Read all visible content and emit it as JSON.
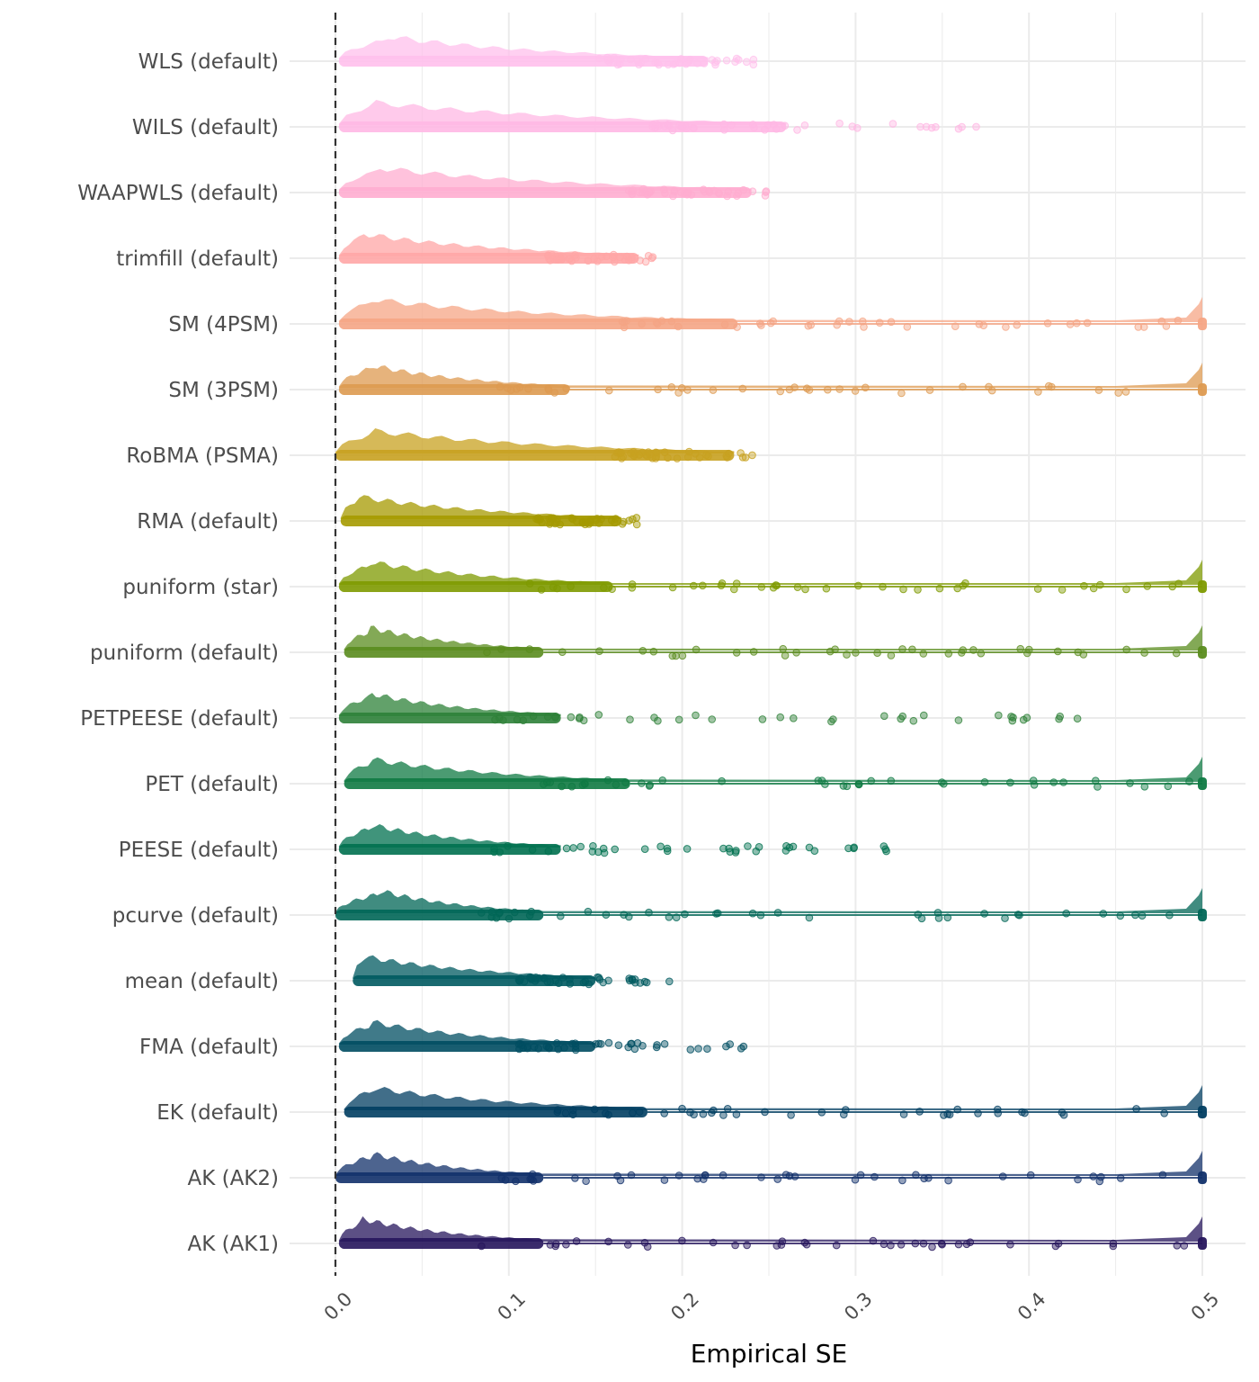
{
  "chart_data": {
    "type": "scatter",
    "subtype": "raincloud",
    "title": "",
    "xlabel": "Empirical SE",
    "ylabel": "",
    "xlim": [
      0.0,
      0.5
    ],
    "x_ticks": [
      "0.0",
      "0.1",
      "0.2",
      "0.3",
      "0.4",
      "0.5"
    ],
    "reference_line": {
      "x": 0.0,
      "style": "dashed"
    },
    "grid": true,
    "legend": "none",
    "categories": [
      "WLS (default)",
      "WILS (default)",
      "WAAPWLS (default)",
      "trimfill (default)",
      "SM (4PSM)",
      "SM (3PSM)",
      "RoBMA (PSMA)",
      "RMA (default)",
      "puniform (star)",
      "puniform (default)",
      "PETPEESE (default)",
      "PET (default)",
      "PEESE (default)",
      "pcurve (default)",
      "mean (default)",
      "FMA (default)",
      "EK (default)",
      "AK (AK2)",
      "AK (AK1)"
    ],
    "series": [
      {
        "category": "WLS (default)",
        "color": "#ffc0ec",
        "min": 0.002,
        "max": 0.242,
        "dense_max": 0.215,
        "peak": 0.03,
        "spike_at_max": 0
      },
      {
        "category": "WILS (default)",
        "color": "#ffb8e4",
        "min": 0.002,
        "max": 0.37,
        "dense_max": 0.26,
        "peak": 0.02,
        "spike_at_max": 0
      },
      {
        "category": "WAAPWLS (default)",
        "color": "#ffadd0",
        "min": 0.002,
        "max": 0.252,
        "dense_max": 0.24,
        "peak": 0.025,
        "spike_at_max": 0
      },
      {
        "category": "trimfill (default)",
        "color": "#ffa6a6",
        "min": 0.002,
        "max": 0.185,
        "dense_max": 0.175,
        "peak": 0.015,
        "spike_at_max": 0
      },
      {
        "category": "SM (4PSM)",
        "color": "#f5a585",
        "min": 0.002,
        "max": 0.5,
        "dense_max": 0.232,
        "peak": 0.02,
        "spike_at_max": 1
      },
      {
        "category": "SM (3PSM)",
        "color": "#dd9a50",
        "min": 0.002,
        "max": 0.5,
        "dense_max": 0.135,
        "peak": 0.02,
        "spike_at_max": 1
      },
      {
        "category": "RoBMA (PSMA)",
        "color": "#c8a120",
        "min": 0.0,
        "max": 0.242,
        "dense_max": 0.23,
        "peak": 0.02,
        "spike_at_max": 0
      },
      {
        "category": "RMA (default)",
        "color": "#a59a00",
        "min": 0.003,
        "max": 0.175,
        "dense_max": 0.165,
        "peak": 0.012,
        "spike_at_max": 0
      },
      {
        "category": "puniform (star)",
        "color": "#7e9a00",
        "min": 0.002,
        "max": 0.5,
        "dense_max": 0.16,
        "peak": 0.02,
        "spike_at_max": 1
      },
      {
        "category": "puniform (default)",
        "color": "#5a8c1e",
        "min": 0.005,
        "max": 0.5,
        "dense_max": 0.12,
        "peak": 0.02,
        "spike_at_max": 1
      },
      {
        "category": "PETPEESE (default)",
        "color": "#2e8138",
        "min": 0.002,
        "max": 0.438,
        "dense_max": 0.13,
        "peak": 0.02,
        "spike_at_max": 0
      },
      {
        "category": "PET (default)",
        "color": "#0f7a43",
        "min": 0.005,
        "max": 0.5,
        "dense_max": 0.17,
        "peak": 0.02,
        "spike_at_max": 1
      },
      {
        "category": "PEESE (default)",
        "color": "#00704f",
        "min": 0.002,
        "max": 0.32,
        "dense_max": 0.13,
        "peak": 0.02,
        "spike_at_max": 0
      },
      {
        "category": "pcurve (default)",
        "color": "#006656",
        "min": 0.0,
        "max": 0.5,
        "dense_max": 0.12,
        "peak": 0.025,
        "spike_at_max": 1
      },
      {
        "category": "mean (default)",
        "color": "#005a60",
        "min": 0.01,
        "max": 0.193,
        "dense_max": 0.15,
        "peak": 0.015,
        "spike_at_max": 0
      },
      {
        "category": "FMA (default)",
        "color": "#004d62",
        "min": 0.002,
        "max": 0.242,
        "dense_max": 0.15,
        "peak": 0.02,
        "spike_at_max": 0
      },
      {
        "category": "EK (default)",
        "color": "#013e62",
        "min": 0.005,
        "max": 0.5,
        "dense_max": 0.18,
        "peak": 0.02,
        "spike_at_max": 1
      },
      {
        "category": "AK (AK2)",
        "color": "#11306a",
        "min": 0.0,
        "max": 0.5,
        "dense_max": 0.12,
        "peak": 0.02,
        "spike_at_max": 1
      },
      {
        "category": "AK (AK1)",
        "color": "#26155c",
        "min": 0.002,
        "max": 0.5,
        "dense_max": 0.12,
        "peak": 0.015,
        "spike_at_max": 1
      }
    ]
  }
}
